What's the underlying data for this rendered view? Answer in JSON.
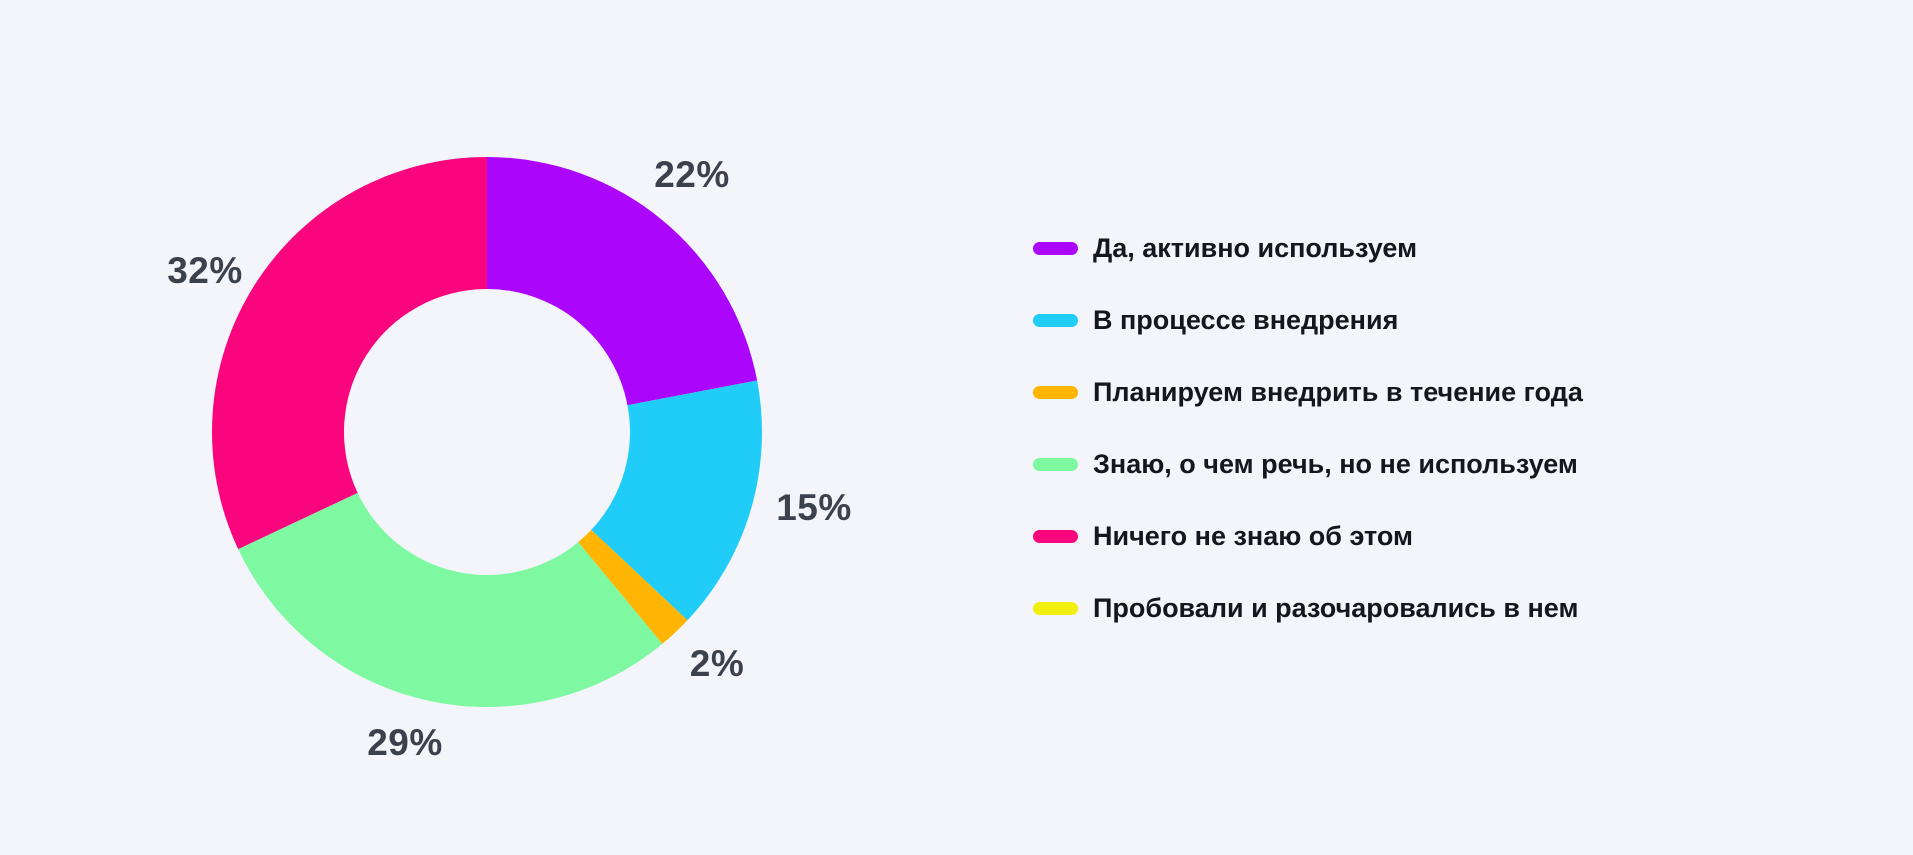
{
  "theme": {
    "background": "#F4F5FA",
    "percent_label_color": "#3C424D",
    "legend_text_color": "#14171D"
  },
  "chart_data": {
    "type": "pie",
    "subtype": "donut",
    "title": "",
    "categories": [
      "Да, активно используем",
      "В процессе внедрения",
      "Планируем внедрить в течение года",
      "Знаю, о чем речь, но не используем",
      "Ничего не знаю об этом",
      "Пробовали и разочаровались в нем"
    ],
    "values": [
      22,
      15,
      2,
      29,
      32,
      0
    ],
    "labels": [
      "22%",
      "15%",
      "2%",
      "29%",
      "32%",
      ""
    ],
    "colors": [
      "#AC05FB",
      "#20CCF8",
      "#FFB502",
      "#7EF9A2",
      "#F9057E",
      "#F3EF0D"
    ],
    "start_angle_deg": 0,
    "direction": "clockwise",
    "donut_hole_ratio": 0.52,
    "legend_position": "right",
    "grid": false
  }
}
